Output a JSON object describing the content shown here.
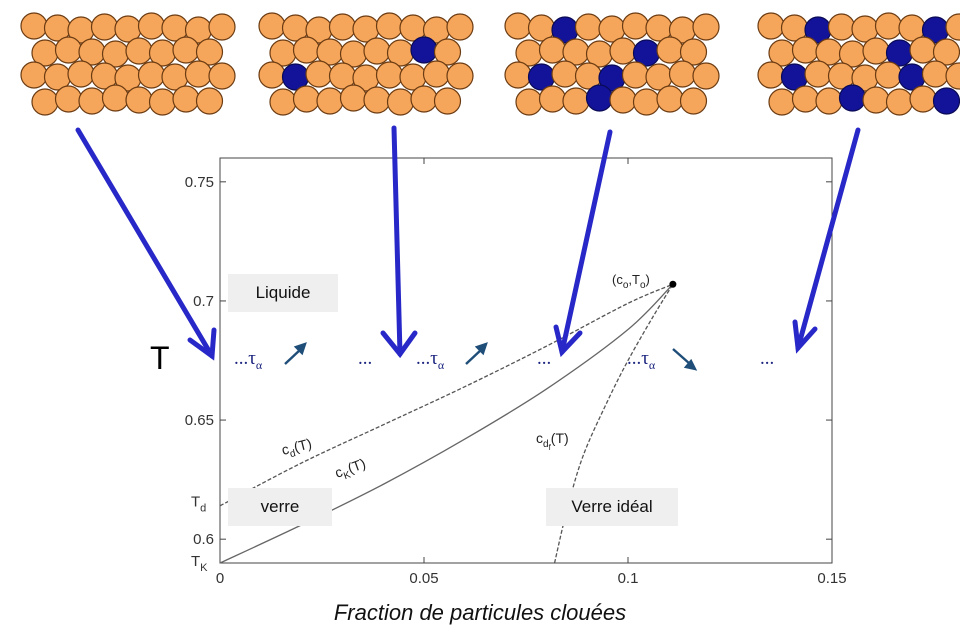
{
  "chart_data": {
    "type": "line",
    "title": "",
    "xlabel": "Fraction de particules clouées",
    "ylabel": "T",
    "xlim": [
      0,
      0.15
    ],
    "ylim": [
      0.59,
      0.76
    ],
    "xticks": [
      "0",
      "0.05",
      "0.1",
      "0.15"
    ],
    "yticks": [
      "0.6",
      "0.65",
      "0.7",
      "0.75"
    ],
    "special_yticks": [
      {
        "main": "T",
        "sub": "d",
        "value": 0.615
      },
      {
        "main": "T",
        "sub": "K",
        "value": 0.59
      }
    ],
    "series": [
      {
        "name": "c_d(T)",
        "style": "dashed",
        "x": [
          0,
          0.02,
          0.04,
          0.06,
          0.08,
          0.1,
          0.111
        ],
        "y": [
          0.614,
          0.632,
          0.648,
          0.664,
          0.681,
          0.699,
          0.707
        ]
      },
      {
        "name": "c_K(T)",
        "style": "solid",
        "x": [
          0,
          0.02,
          0.04,
          0.06,
          0.08,
          0.1,
          0.111
        ],
        "y": [
          0.59,
          0.606,
          0.623,
          0.642,
          0.663,
          0.688,
          0.707
        ]
      },
      {
        "name": "c_df(T)",
        "style": "dashed",
        "x": [
          0.082,
          0.085,
          0.089,
          0.095,
          0.1,
          0.106,
          0.111
        ],
        "y": [
          0.59,
          0.612,
          0.635,
          0.658,
          0.675,
          0.693,
          0.707
        ]
      }
    ],
    "point": {
      "label": "(c_o,T_o)",
      "x": 0.111,
      "y": 0.707
    },
    "regions": [
      "Liquide",
      "verre",
      "Verre idéal"
    ],
    "annotations": [
      "…τ_α ↗",
      "…",
      "…τ_α ↗",
      "…",
      "…τ_α ↘",
      "…"
    ]
  },
  "colors": {
    "particle_orange": "#f6a65a",
    "particle_blue": "#13139a",
    "arrow_blue": "#2828c8",
    "annotation_blue": "#1a237e"
  },
  "particle_panels": [
    {
      "blue_count": 0
    },
    {
      "blue_count": 2
    },
    {
      "blue_count": 5
    },
    {
      "blue_count": 8
    }
  ],
  "labels": {
    "big_t": "T",
    "tau_symbol": "τ",
    "tau_sub": "α",
    "ellipsis": "...",
    "region_liquide": "Liquide",
    "region_verre": "verre",
    "region_verre_ideal": "Verre idéal",
    "cd_main": "c",
    "cd_sub": "d",
    "ck_main": "c",
    "ck_sub": "K",
    "cdf_main": "c",
    "cdf_sub": "d",
    "cdf_subsub": "f",
    "curve_arg": "(T)",
    "point_text": "(c",
    "point_sub_o": "o",
    "point_comma_t": ",T",
    "point_close": ")"
  }
}
